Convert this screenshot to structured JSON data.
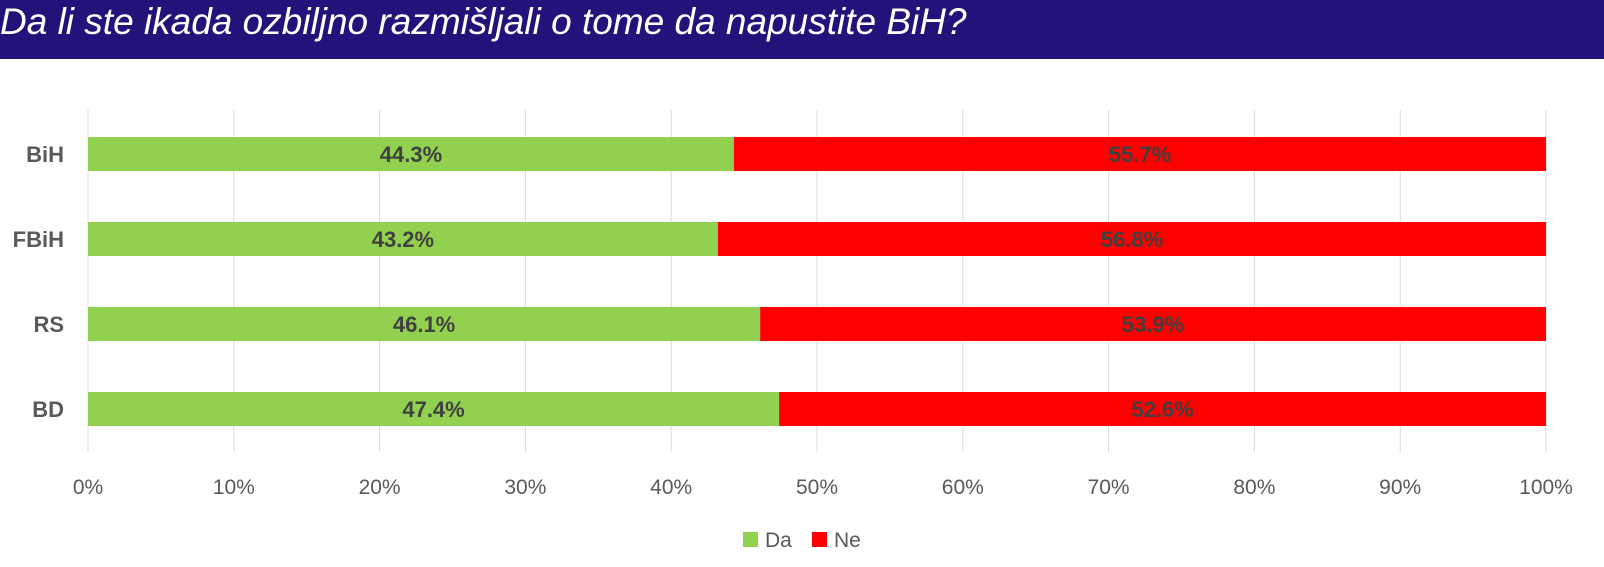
{
  "title": "Da li ste ikada ozbiljno razmišljali o tome da napustite BiH?",
  "colors": {
    "title_bg": "#22137a",
    "grid": "#d9d9d9"
  },
  "chart_data": {
    "type": "bar",
    "orientation": "horizontal",
    "stacked": true,
    "categories": [
      "BiH",
      "FBiH",
      "RS",
      "BD"
    ],
    "series": [
      {
        "name": "Da",
        "color": "#92d050",
        "values": [
          44.3,
          43.2,
          46.1,
          47.4
        ],
        "labels": [
          "44.3%",
          "43.2%",
          "46.1%",
          "47.4%"
        ]
      },
      {
        "name": "Ne",
        "color": "#ff0000",
        "values": [
          55.7,
          56.8,
          53.9,
          52.6
        ],
        "labels": [
          "55.7%",
          "56.8%",
          "53.9%",
          "52.6%"
        ]
      }
    ],
    "xlim": [
      0,
      100
    ],
    "x_ticks": [
      0,
      10,
      20,
      30,
      40,
      50,
      60,
      70,
      80,
      90,
      100
    ],
    "x_tick_labels": [
      "0%",
      "10%",
      "20%",
      "30%",
      "40%",
      "50%",
      "60%",
      "70%",
      "80%",
      "90%",
      "100%"
    ],
    "grid": true,
    "legend_position": "bottom"
  }
}
